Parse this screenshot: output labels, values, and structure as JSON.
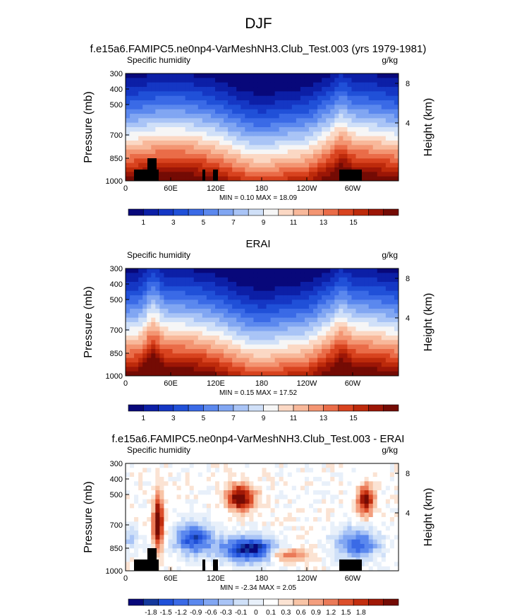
{
  "page": {
    "title": "DJF"
  },
  "colors": {
    "abs_scale": [
      "#08087a",
      "#0c1fa6",
      "#1537c4",
      "#2050d8",
      "#3a6ae6",
      "#5b88ee",
      "#81a6f2",
      "#a9c4f6",
      "#d0e0f8",
      "#f6f6f6",
      "#fbd8c4",
      "#f8b89a",
      "#f39572",
      "#ea6c48",
      "#d8431f",
      "#bd2a0b",
      "#9c1606",
      "#740b04"
    ],
    "diff_scale": [
      "#08087a",
      "#14389c",
      "#2050d8",
      "#3a6ae6",
      "#5b88ee",
      "#81a6f2",
      "#a9c4f6",
      "#cfe0f8",
      "#e8f0fa",
      "#ffffff",
      "#fbe3d3",
      "#f8c4a6",
      "#f39e7e",
      "#ea7a58",
      "#dc4f2b",
      "#c22e0f",
      "#a01806",
      "#740b04"
    ],
    "mask": "#000000"
  },
  "chart_data": [
    {
      "type": "heatmap",
      "panel_title": "f.e15a6.FAMIPC5.ne0np4-VarMeshNH3.Club_Test.003 (yrs 1979-1981)",
      "left_label": "Specific humidity",
      "right_label": "g/kg",
      "ylabel": "Pressure (mb)",
      "y2label": "Height (km)",
      "yticks": [
        "300",
        "400",
        "500",
        "700",
        "850",
        "1000"
      ],
      "y2ticks": [
        "8",
        "4"
      ],
      "xticks": [
        "0",
        "60E",
        "120E",
        "180",
        "120W",
        "60W"
      ],
      "stats": "MIN =  0.10  MAX = 18.09",
      "colorbar_labels": [
        "1",
        "3",
        "5",
        "7",
        "9",
        "11",
        "13",
        "15"
      ],
      "min": 0.1,
      "max": 18.09
    },
    {
      "type": "heatmap",
      "panel_title": "ERAI",
      "left_label": "Specific humidity",
      "right_label": "g/kg",
      "ylabel": "Pressure (mb)",
      "y2label": "Height (km)",
      "yticks": [
        "300",
        "400",
        "500",
        "700",
        "850",
        "1000"
      ],
      "y2ticks": [
        "8",
        "4"
      ],
      "xticks": [
        "0",
        "60E",
        "120E",
        "180",
        "120W",
        "60W"
      ],
      "stats": "MIN =  0.15  MAX = 17.52",
      "colorbar_labels": [
        "1",
        "3",
        "5",
        "7",
        "9",
        "11",
        "13",
        "15"
      ],
      "min": 0.15,
      "max": 17.52
    },
    {
      "type": "heatmap",
      "panel_title": "f.e15a6.FAMIPC5.ne0np4-VarMeshNH3.Club_Test.003 - ERAI",
      "left_label": "Specific humidity",
      "right_label": "g/kg",
      "ylabel": "Pressure (mb)",
      "y2label": "Height (km)",
      "yticks": [
        "300",
        "400",
        "500",
        "700",
        "850",
        "1000"
      ],
      "y2ticks": [
        "8",
        "4"
      ],
      "xticks": [
        "0",
        "60E",
        "120E",
        "180",
        "120W",
        "60W"
      ],
      "stats": "MIN = -2.34  MAX =  2.05",
      "colorbar_labels": [
        "-1.8",
        "-1.5",
        "-1.2",
        "-0.9",
        "-0.6",
        "-0.3",
        "-0.1",
        "0",
        "0.1",
        "0.3",
        "0.6",
        "0.9",
        "1.2",
        "1.5",
        "1.8"
      ],
      "min": -2.34,
      "max": 2.05
    }
  ]
}
